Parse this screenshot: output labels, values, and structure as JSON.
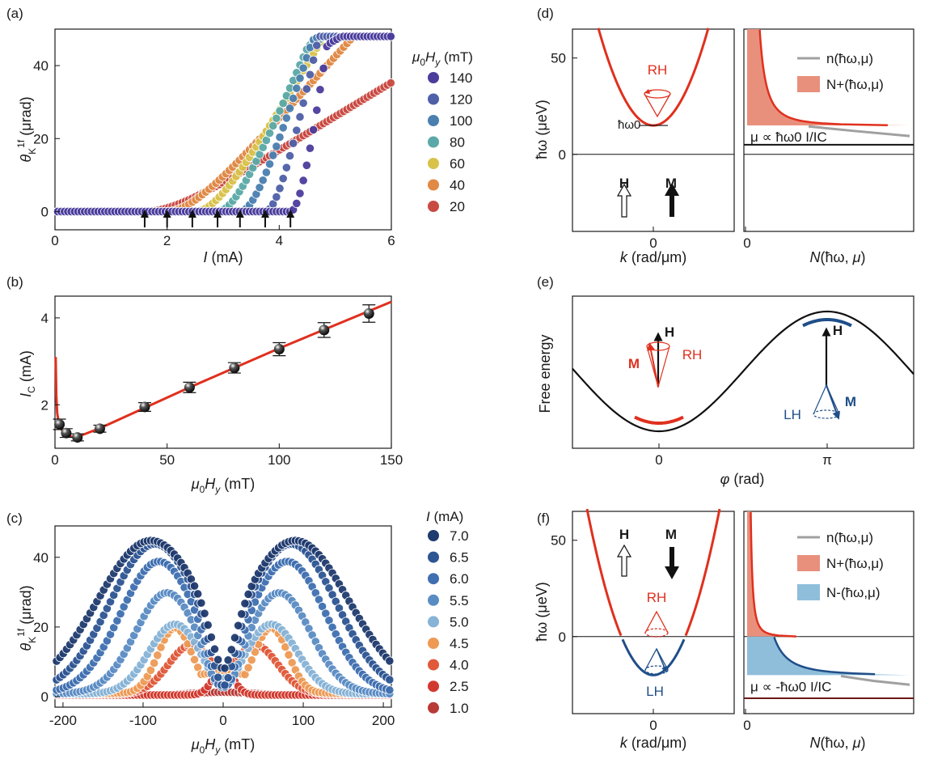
{
  "panels": {
    "a": {
      "label": "(a)"
    },
    "b": {
      "label": "(b)"
    },
    "c": {
      "label": "(c)"
    },
    "d": {
      "label": "(d)"
    },
    "e": {
      "label": "(e)"
    },
    "f": {
      "label": "(f)"
    }
  },
  "colors": {
    "red": "#e0301e",
    "blue": "#1f4e89",
    "pink_fill": "#e9907c",
    "blue_fill": "#8fbedb",
    "gray": "#a0a0a0"
  },
  "chart_data": [
    {
      "id": "a",
      "type": "scatter",
      "xlabel": "I (mA)",
      "ylabel": "θK1f (μrad)",
      "xlim": [
        0,
        6
      ],
      "ylim": [
        -5,
        50
      ],
      "xticks": [
        0,
        2,
        4,
        6
      ],
      "yticks": [
        0,
        20,
        40
      ],
      "legend_title": "μ0Hy (mT)",
      "legend_position": "right",
      "series": [
        {
          "name": "140",
          "color": "#4b3d9c",
          "onset": 4.2,
          "slope": 110,
          "tau": 0.26,
          "lin": 4.0
        },
        {
          "name": "120",
          "color": "#4f5fa8",
          "onset": 3.75,
          "slope": 70,
          "tau": 0.28,
          "lin": 3.6
        },
        {
          "name": "100",
          "color": "#4a7fb0",
          "onset": 3.3,
          "slope": 48,
          "tau": 0.32,
          "lin": 3.6
        },
        {
          "name": "80",
          "color": "#5aa9a8",
          "onset": 2.9,
          "slope": 36,
          "tau": 0.36,
          "lin": 3.7
        },
        {
          "name": "60",
          "color": "#d9c24a",
          "onset": 2.5,
          "slope": 26,
          "tau": 0.45,
          "lin": 3.6
        },
        {
          "name": "40",
          "color": "#e08a45",
          "onset": 2.0,
          "slope": 17,
          "tau": 0.5,
          "lin": 3.7
        },
        {
          "name": "20",
          "color": "#c94a42",
          "onset": 1.6,
          "slope": 9.3,
          "tau": 0.6,
          "lin": 3.7
        }
      ],
      "arrows_x": [
        1.6,
        2.0,
        2.45,
        2.9,
        3.3,
        3.75,
        4.2
      ]
    },
    {
      "id": "b",
      "type": "scatter",
      "xlabel": "μ0Hy (mT)",
      "ylabel": "IC (mA)",
      "xlim": [
        0,
        150
      ],
      "ylim": [
        1.0,
        4.5
      ],
      "xticks": [
        0,
        50,
        100,
        150
      ],
      "yticks": [
        2,
        4
      ],
      "points": [
        {
          "x": 2,
          "y": 1.55,
          "err": 0.12
        },
        {
          "x": 5,
          "y": 1.35,
          "err": 0.1
        },
        {
          "x": 10,
          "y": 1.25,
          "err": 0.08
        },
        {
          "x": 20,
          "y": 1.45,
          "err": 0.08
        },
        {
          "x": 40,
          "y": 1.95,
          "err": 0.1
        },
        {
          "x": 60,
          "y": 2.4,
          "err": 0.12
        },
        {
          "x": 80,
          "y": 2.85,
          "err": 0.12
        },
        {
          "x": 100,
          "y": 3.28,
          "err": 0.15
        },
        {
          "x": 120,
          "y": 3.72,
          "err": 0.17
        },
        {
          "x": 140,
          "y": 4.1,
          "err": 0.2
        }
      ],
      "fit": [
        [
          0.3,
          3.1
        ],
        [
          0.6,
          2.2
        ],
        [
          1,
          1.8
        ],
        [
          2,
          1.5
        ],
        [
          4,
          1.35
        ],
        [
          7,
          1.27
        ],
        [
          10,
          1.26
        ],
        [
          20,
          1.46
        ],
        [
          60,
          2.4
        ],
        [
          100,
          3.3
        ],
        [
          150,
          4.37
        ]
      ]
    },
    {
      "id": "c",
      "type": "scatter",
      "xlabel": "μ0Hy (mT)",
      "ylabel": "θK1f (μrad)",
      "xlim": [
        -210,
        210
      ],
      "ylim": [
        -3,
        49
      ],
      "xticks": [
        -200,
        -100,
        0,
        100,
        200
      ],
      "yticks": [
        0,
        20,
        40
      ],
      "legend_title": "I (mA)",
      "legend_position": "right",
      "series": [
        {
          "name": "7.0",
          "color": "#1f3a6e",
          "A": 44,
          "x0": 90,
          "w": 95,
          "dip": 18,
          "dw": 22
        },
        {
          "name": "6.5",
          "color": "#2d5593",
          "A": 43,
          "x0": 85,
          "w": 80,
          "dip": 20,
          "dw": 22
        },
        {
          "name": "6.0",
          "color": "#3f6fb0",
          "A": 38,
          "x0": 80,
          "w": 68,
          "dip": 18,
          "dw": 22
        },
        {
          "name": "5.5",
          "color": "#5a8cc4",
          "A": 29,
          "x0": 70,
          "w": 56,
          "dip": 12,
          "dw": 24
        },
        {
          "name": "5.0",
          "color": "#86b3d6",
          "A": 20,
          "x0": 60,
          "w": 46,
          "dip": 4,
          "dw": 25
        },
        {
          "name": "4.5",
          "color": "#ee9a55",
          "A": 19,
          "x0": 60,
          "w": 30,
          "dip": 1,
          "dw": 25
        },
        {
          "name": "4.0",
          "color": "#e0593a",
          "A": 14,
          "x0": 40,
          "w": 40,
          "dip": 0,
          "dw": 25
        },
        {
          "name": "2.5",
          "color": "#d2392e",
          "A": 7.5,
          "x0": 0,
          "w": 18,
          "dip": 0,
          "dw": 20
        },
        {
          "name": "1.0",
          "color": "#b83a36",
          "A": 0.8,
          "x0": 0,
          "w": 50,
          "dip": 0,
          "dw": 20
        }
      ]
    },
    {
      "id": "d",
      "type": "line",
      "xlabel": "k (rad/μm)",
      "ylabel": "ħω (μeV)",
      "ylim": [
        -40,
        65
      ],
      "yticks": [
        0,
        50
      ],
      "xticks": [
        0
      ],
      "right_xlabel": "N(ħω, μ)",
      "right_xticks": [
        0
      ],
      "annotations": [
        "RH",
        "ħω0",
        "H",
        "M",
        "μ ∝ ħω0 I/IC"
      ],
      "legend": [
        "n(ħω,μ)",
        "N+(ħω,μ)"
      ],
      "gap": 15,
      "mu": 5
    },
    {
      "id": "e",
      "type": "line",
      "xlabel": "φ (rad)",
      "ylabel": "Free energy",
      "xticks": [
        "0",
        "π"
      ],
      "annotations": [
        "H",
        "M",
        "RH",
        "H",
        "M",
        "LH"
      ]
    },
    {
      "id": "f",
      "type": "line",
      "xlabel": "k (rad/μm)",
      "ylabel": "ħω (μeV)",
      "ylim": [
        -40,
        65
      ],
      "yticks": [
        0,
        50
      ],
      "xticks": [
        0
      ],
      "right_xlabel": "N(ħω, μ)",
      "right_xticks": [
        0
      ],
      "annotations": [
        "H",
        "M",
        "RH",
        "LH",
        "μ ∝ -ħω0 I/IC"
      ],
      "legend": [
        "n(ħω,μ)",
        "N+(ħω,μ)",
        "N-(ħω,μ)"
      ],
      "gap": -20,
      "mu": -32
    }
  ]
}
